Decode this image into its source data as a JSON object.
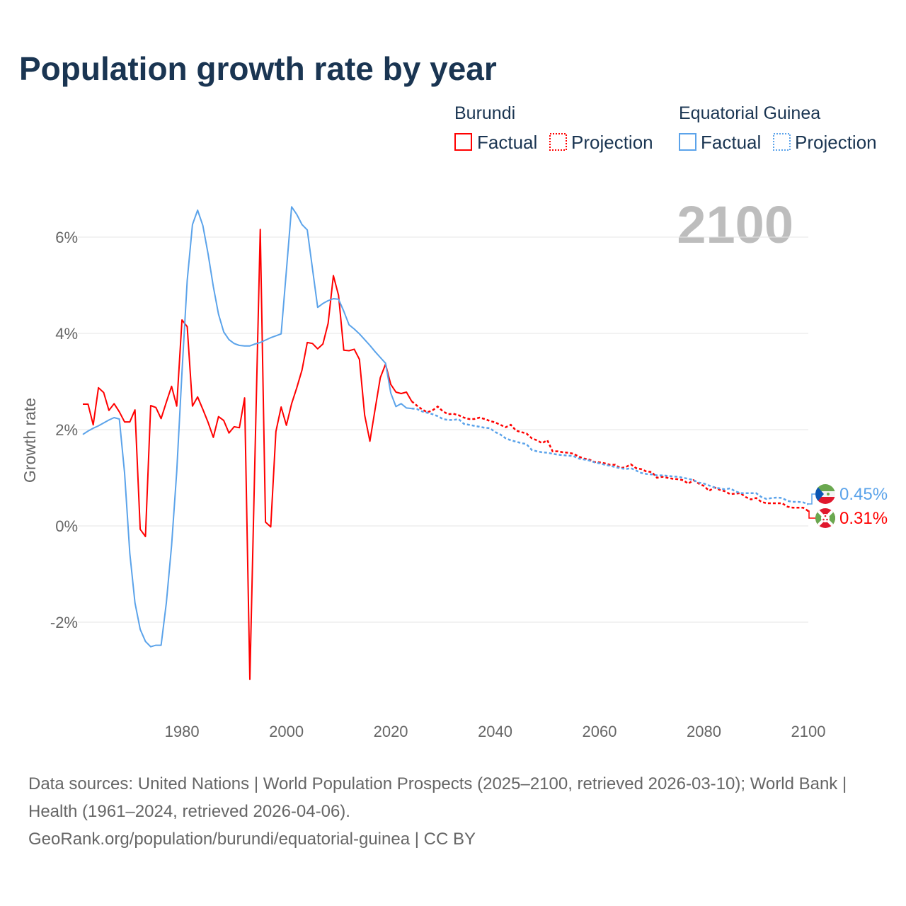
{
  "title": "Population growth rate by year",
  "legend": {
    "groups": [
      {
        "country": "Burundi",
        "color": "#ff0000",
        "factual": "Factual",
        "projection": "Projection"
      },
      {
        "country": "Equatorial Guinea",
        "color": "#5ba3ea",
        "factual": "Factual",
        "projection": "Projection"
      }
    ]
  },
  "year_display": "2100",
  "end_labels": {
    "equatorial_guinea": "0.45%",
    "burundi": "0.31%"
  },
  "footer": {
    "sources": "Data sources: United Nations | World Population Prospects (2025–2100, retrieved 2026-03-10); World Bank | Health (1961–2024, retrieved 2026-04-06).",
    "credit": "GeoRank.org/population/burundi/equatorial-guinea | CC BY"
  },
  "chart_data": {
    "type": "line",
    "title": "Population growth rate by year",
    "xlabel": "",
    "ylabel": "Growth rate",
    "xlim": [
      1961,
      2100
    ],
    "ylim": [
      -3.5,
      7
    ],
    "x_ticks": [
      1980,
      2000,
      2020,
      2040,
      2060,
      2080,
      2100
    ],
    "x_tick_labels": [
      "1980",
      "2000",
      "2020",
      "2040",
      "2060",
      "2080",
      "2100"
    ],
    "y_ticks": [
      -2,
      0,
      2,
      4,
      6
    ],
    "y_tick_labels": [
      "-2%",
      "0%",
      "2%",
      "4%",
      "6%"
    ],
    "grid": true,
    "legend_position": "top-right",
    "factual_start": 1961,
    "projection_start": 2025,
    "series": [
      {
        "name": "Burundi",
        "color": "#ff0000",
        "factual": [
          2.53,
          2.53,
          2.1,
          2.87,
          2.77,
          2.4,
          2.54,
          2.37,
          2.16,
          2.16,
          2.41,
          -0.07,
          -0.22,
          2.5,
          2.46,
          2.23,
          2.57,
          2.9,
          2.49,
          4.28,
          4.14,
          2.49,
          2.68,
          2.42,
          2.15,
          1.84,
          2.27,
          2.19,
          1.93,
          2.06,
          2.04,
          2.66,
          -3.19,
          1.5,
          6.16,
          0.08,
          -0.02,
          1.96,
          2.47,
          2.09,
          2.54,
          2.87,
          3.24,
          3.81,
          3.79,
          3.68,
          3.78,
          4.21,
          5.2,
          4.79,
          3.65,
          3.64,
          3.67,
          3.46,
          2.3,
          1.76,
          2.42,
          3.08,
          3.36,
          2.94,
          2.78,
          2.75,
          2.78,
          2.59
        ],
        "projection": [
          2.5,
          2.42,
          2.36,
          2.4,
          2.48,
          2.38,
          2.32,
          2.33,
          2.3,
          2.25,
          2.22,
          2.22,
          2.25,
          2.22,
          2.18,
          2.15,
          2.1,
          2.05,
          2.1,
          1.98,
          1.95,
          1.92,
          1.82,
          1.78,
          1.72,
          1.78,
          1.55,
          1.55,
          1.53,
          1.52,
          1.5,
          1.44,
          1.4,
          1.38,
          1.33,
          1.32,
          1.3,
          1.27,
          1.27,
          1.2,
          1.22,
          1.28,
          1.2,
          1.18,
          1.13,
          1.12,
          1.0,
          1.02,
          1.0,
          0.98,
          0.97,
          0.95,
          0.88,
          0.95,
          0.88,
          0.83,
          0.73,
          0.8,
          0.75,
          0.72,
          0.66,
          0.67,
          0.68,
          0.6,
          0.55,
          0.58,
          0.5,
          0.47,
          0.47,
          0.47,
          0.47,
          0.4,
          0.38,
          0.38,
          0.38,
          0.31
        ]
      },
      {
        "name": "Equatorial Guinea",
        "color": "#5ba3ea",
        "factual": [
          1.9,
          1.97,
          2.03,
          2.08,
          2.14,
          2.2,
          2.25,
          2.22,
          1.1,
          -0.57,
          -1.6,
          -2.15,
          -2.4,
          -2.51,
          -2.48,
          -2.48,
          -1.6,
          -0.41,
          1.13,
          3.19,
          5.1,
          6.26,
          6.56,
          6.24,
          5.65,
          4.97,
          4.4,
          4.03,
          3.87,
          3.79,
          3.75,
          3.74,
          3.74,
          3.78,
          3.81,
          3.86,
          3.91,
          3.95,
          3.99,
          5.3,
          6.63,
          6.47,
          6.26,
          6.15,
          5.34,
          4.54,
          4.62,
          4.68,
          4.72,
          4.71,
          4.46,
          4.18,
          4.09,
          3.99,
          3.87,
          3.75,
          3.62,
          3.5,
          3.38,
          2.76,
          2.48,
          2.54,
          2.45,
          2.44
        ],
        "projection": [
          2.43,
          2.38,
          2.35,
          2.32,
          2.28,
          2.22,
          2.2,
          2.2,
          2.22,
          2.12,
          2.1,
          2.08,
          2.06,
          2.04,
          2.03,
          1.95,
          1.9,
          1.82,
          1.78,
          1.75,
          1.72,
          1.7,
          1.58,
          1.55,
          1.53,
          1.52,
          1.5,
          1.48,
          1.47,
          1.46,
          1.45,
          1.4,
          1.38,
          1.36,
          1.32,
          1.3,
          1.27,
          1.25,
          1.22,
          1.2,
          1.18,
          1.2,
          1.15,
          1.1,
          1.08,
          1.07,
          1.05,
          1.05,
          1.04,
          1.03,
          1.02,
          1.0,
          0.98,
          0.95,
          0.9,
          0.88,
          0.84,
          0.8,
          0.78,
          0.76,
          0.78,
          0.72,
          0.68,
          0.68,
          0.68,
          0.68,
          0.6,
          0.56,
          0.58,
          0.59,
          0.58,
          0.52,
          0.5,
          0.5,
          0.49,
          0.45
        ]
      }
    ]
  }
}
